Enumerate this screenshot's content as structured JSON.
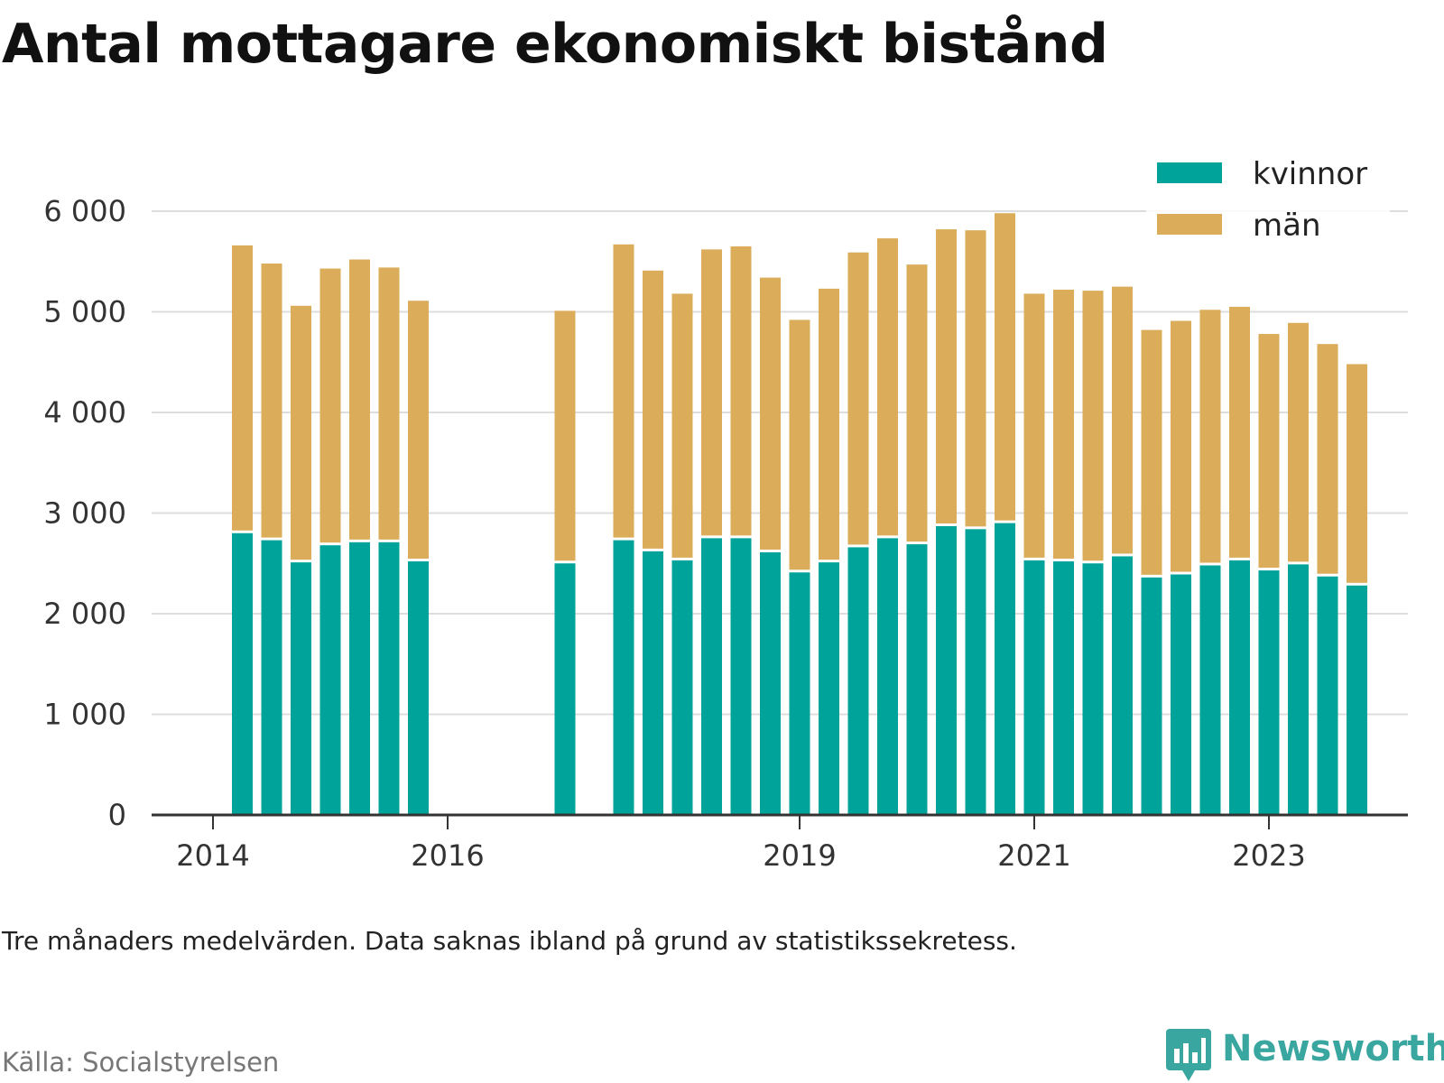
{
  "title": "Antal mottagare ekonomiskt bistånd",
  "note": "Tre månaders medelvärden. Data saknas ibland på grund av statistikssekretess.",
  "source": "Källa: Socialstyrelsen",
  "brand": {
    "name": "Newsworthy",
    "icon": "newsworthy-logo-icon"
  },
  "colors": {
    "kvinnor": "#00a39a",
    "man": "#dbac5a",
    "grid": "#dddddd",
    "axis": "#333333",
    "brand": "#3aa6a0"
  },
  "chart_data": {
    "type": "bar",
    "stacked": true,
    "xlabel": "",
    "ylabel": "",
    "ylim": [
      0,
      6000
    ],
    "yticks": [
      0,
      1000,
      2000,
      3000,
      4000,
      5000,
      6000
    ],
    "ytick_labels": [
      "0",
      "1 000",
      "2 000",
      "3 000",
      "4 000",
      "5 000",
      "6 000"
    ],
    "xticks": [
      "2014",
      "2016",
      "2019",
      "2021",
      "2023"
    ],
    "grid": true,
    "legend_position": "top-right",
    "categories": [
      "Q1 2014",
      "Q2 2014",
      "Q3 2014",
      "Q4 2014",
      "Q1 2015",
      "Q2 2015",
      "Q3 2015",
      "Q4 2015",
      "Q1 2016",
      "Q2 2016",
      "Q3 2016",
      "Q4 2016",
      "Q1 2017",
      "Q2 2017",
      "Q3 2017",
      "Q4 2017",
      "Q1 2018",
      "Q2 2018",
      "Q3 2018",
      "Q4 2018",
      "Q1 2019",
      "Q2 2019",
      "Q3 2019",
      "Q4 2019",
      "Q1 2020",
      "Q2 2020",
      "Q3 2020",
      "Q4 2020",
      "Q1 2021",
      "Q2 2021",
      "Q3 2021",
      "Q4 2021",
      "Q1 2022",
      "Q2 2022",
      "Q3 2022",
      "Q4 2022",
      "Q1 2023",
      "Q2 2023",
      "Q3 2023",
      "Q4 2023"
    ],
    "series": [
      {
        "name": "kvinnor",
        "values": [
          null,
          2800,
          2730,
          2510,
          2680,
          2710,
          2710,
          2520,
          null,
          null,
          null,
          null,
          2500,
          null,
          2730,
          2620,
          2530,
          2750,
          2750,
          2610,
          2410,
          2510,
          2660,
          2750,
          2690,
          2870,
          2840,
          2900,
          2530,
          2520,
          2500,
          2570,
          2360,
          2390,
          2480,
          2530,
          2430,
          2490,
          2370,
          2280
        ]
      },
      {
        "name": "män",
        "values": [
          null,
          2860,
          2750,
          2550,
          2750,
          2810,
          2730,
          2590,
          null,
          null,
          null,
          null,
          2510,
          null,
          2940,
          2790,
          2650,
          2870,
          2900,
          2730,
          2510,
          2720,
          2930,
          2980,
          2780,
          2950,
          2970,
          3080,
          2650,
          2700,
          2710,
          2680,
          2460,
          2520,
          2540,
          2520,
          2350,
          2400,
          2310,
          2200
        ]
      }
    ]
  }
}
